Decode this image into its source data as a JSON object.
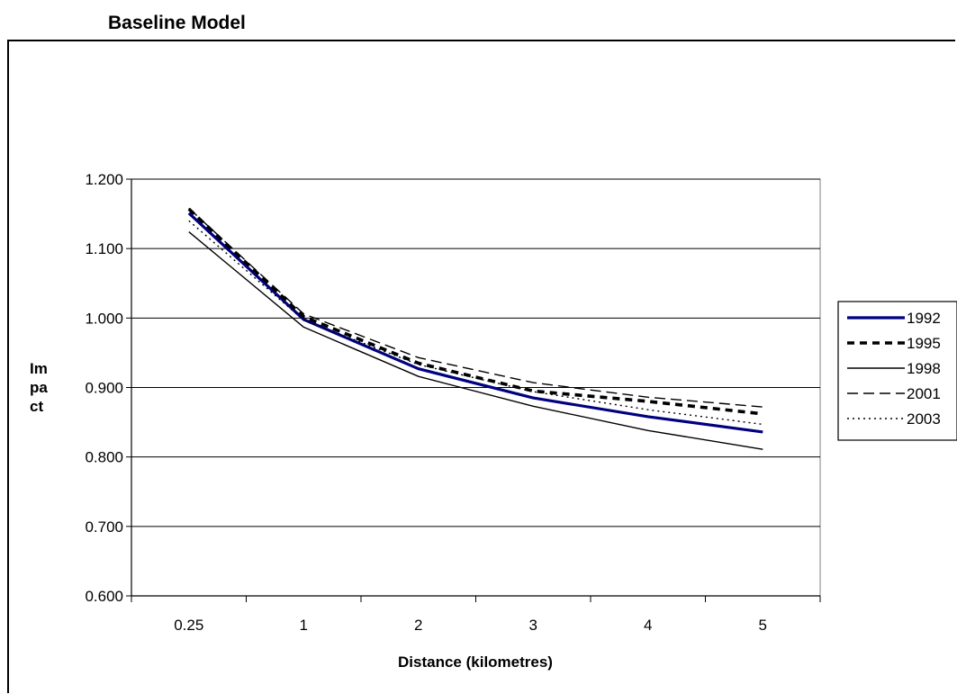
{
  "chart_data": {
    "type": "line",
    "title": "Baseline Model",
    "xlabel": "Distance (kilometres)",
    "ylabel_lines": [
      "Im",
      "pa",
      "ct"
    ],
    "categories": [
      "0.25",
      "1",
      "2",
      "3",
      "4",
      "5"
    ],
    "ylim": [
      0.6,
      1.2
    ],
    "yticks": [
      "0.600",
      "0.700",
      "0.800",
      "0.900",
      "1.000",
      "1.100",
      "1.200"
    ],
    "grid": true,
    "legend_position": "right",
    "series": [
      {
        "name": "1992",
        "values": [
          1.151,
          0.998,
          0.927,
          0.885,
          0.858,
          0.836
        ],
        "color": "#000080",
        "style": "solid-thick"
      },
      {
        "name": "1995",
        "values": [
          1.157,
          1.002,
          0.935,
          0.895,
          0.88,
          0.862
        ],
        "color": "#000000",
        "style": "dash-thick"
      },
      {
        "name": "1998",
        "values": [
          1.124,
          0.987,
          0.916,
          0.873,
          0.838,
          0.811
        ],
        "color": "#000000",
        "style": "solid-thin"
      },
      {
        "name": "2001",
        "values": [
          1.158,
          1.006,
          0.943,
          0.907,
          0.886,
          0.872
        ],
        "color": "#000000",
        "style": "dash-thin"
      },
      {
        "name": "2003",
        "values": [
          1.14,
          0.997,
          0.933,
          0.894,
          0.868,
          0.847
        ],
        "color": "#000000",
        "style": "dot"
      }
    ]
  }
}
